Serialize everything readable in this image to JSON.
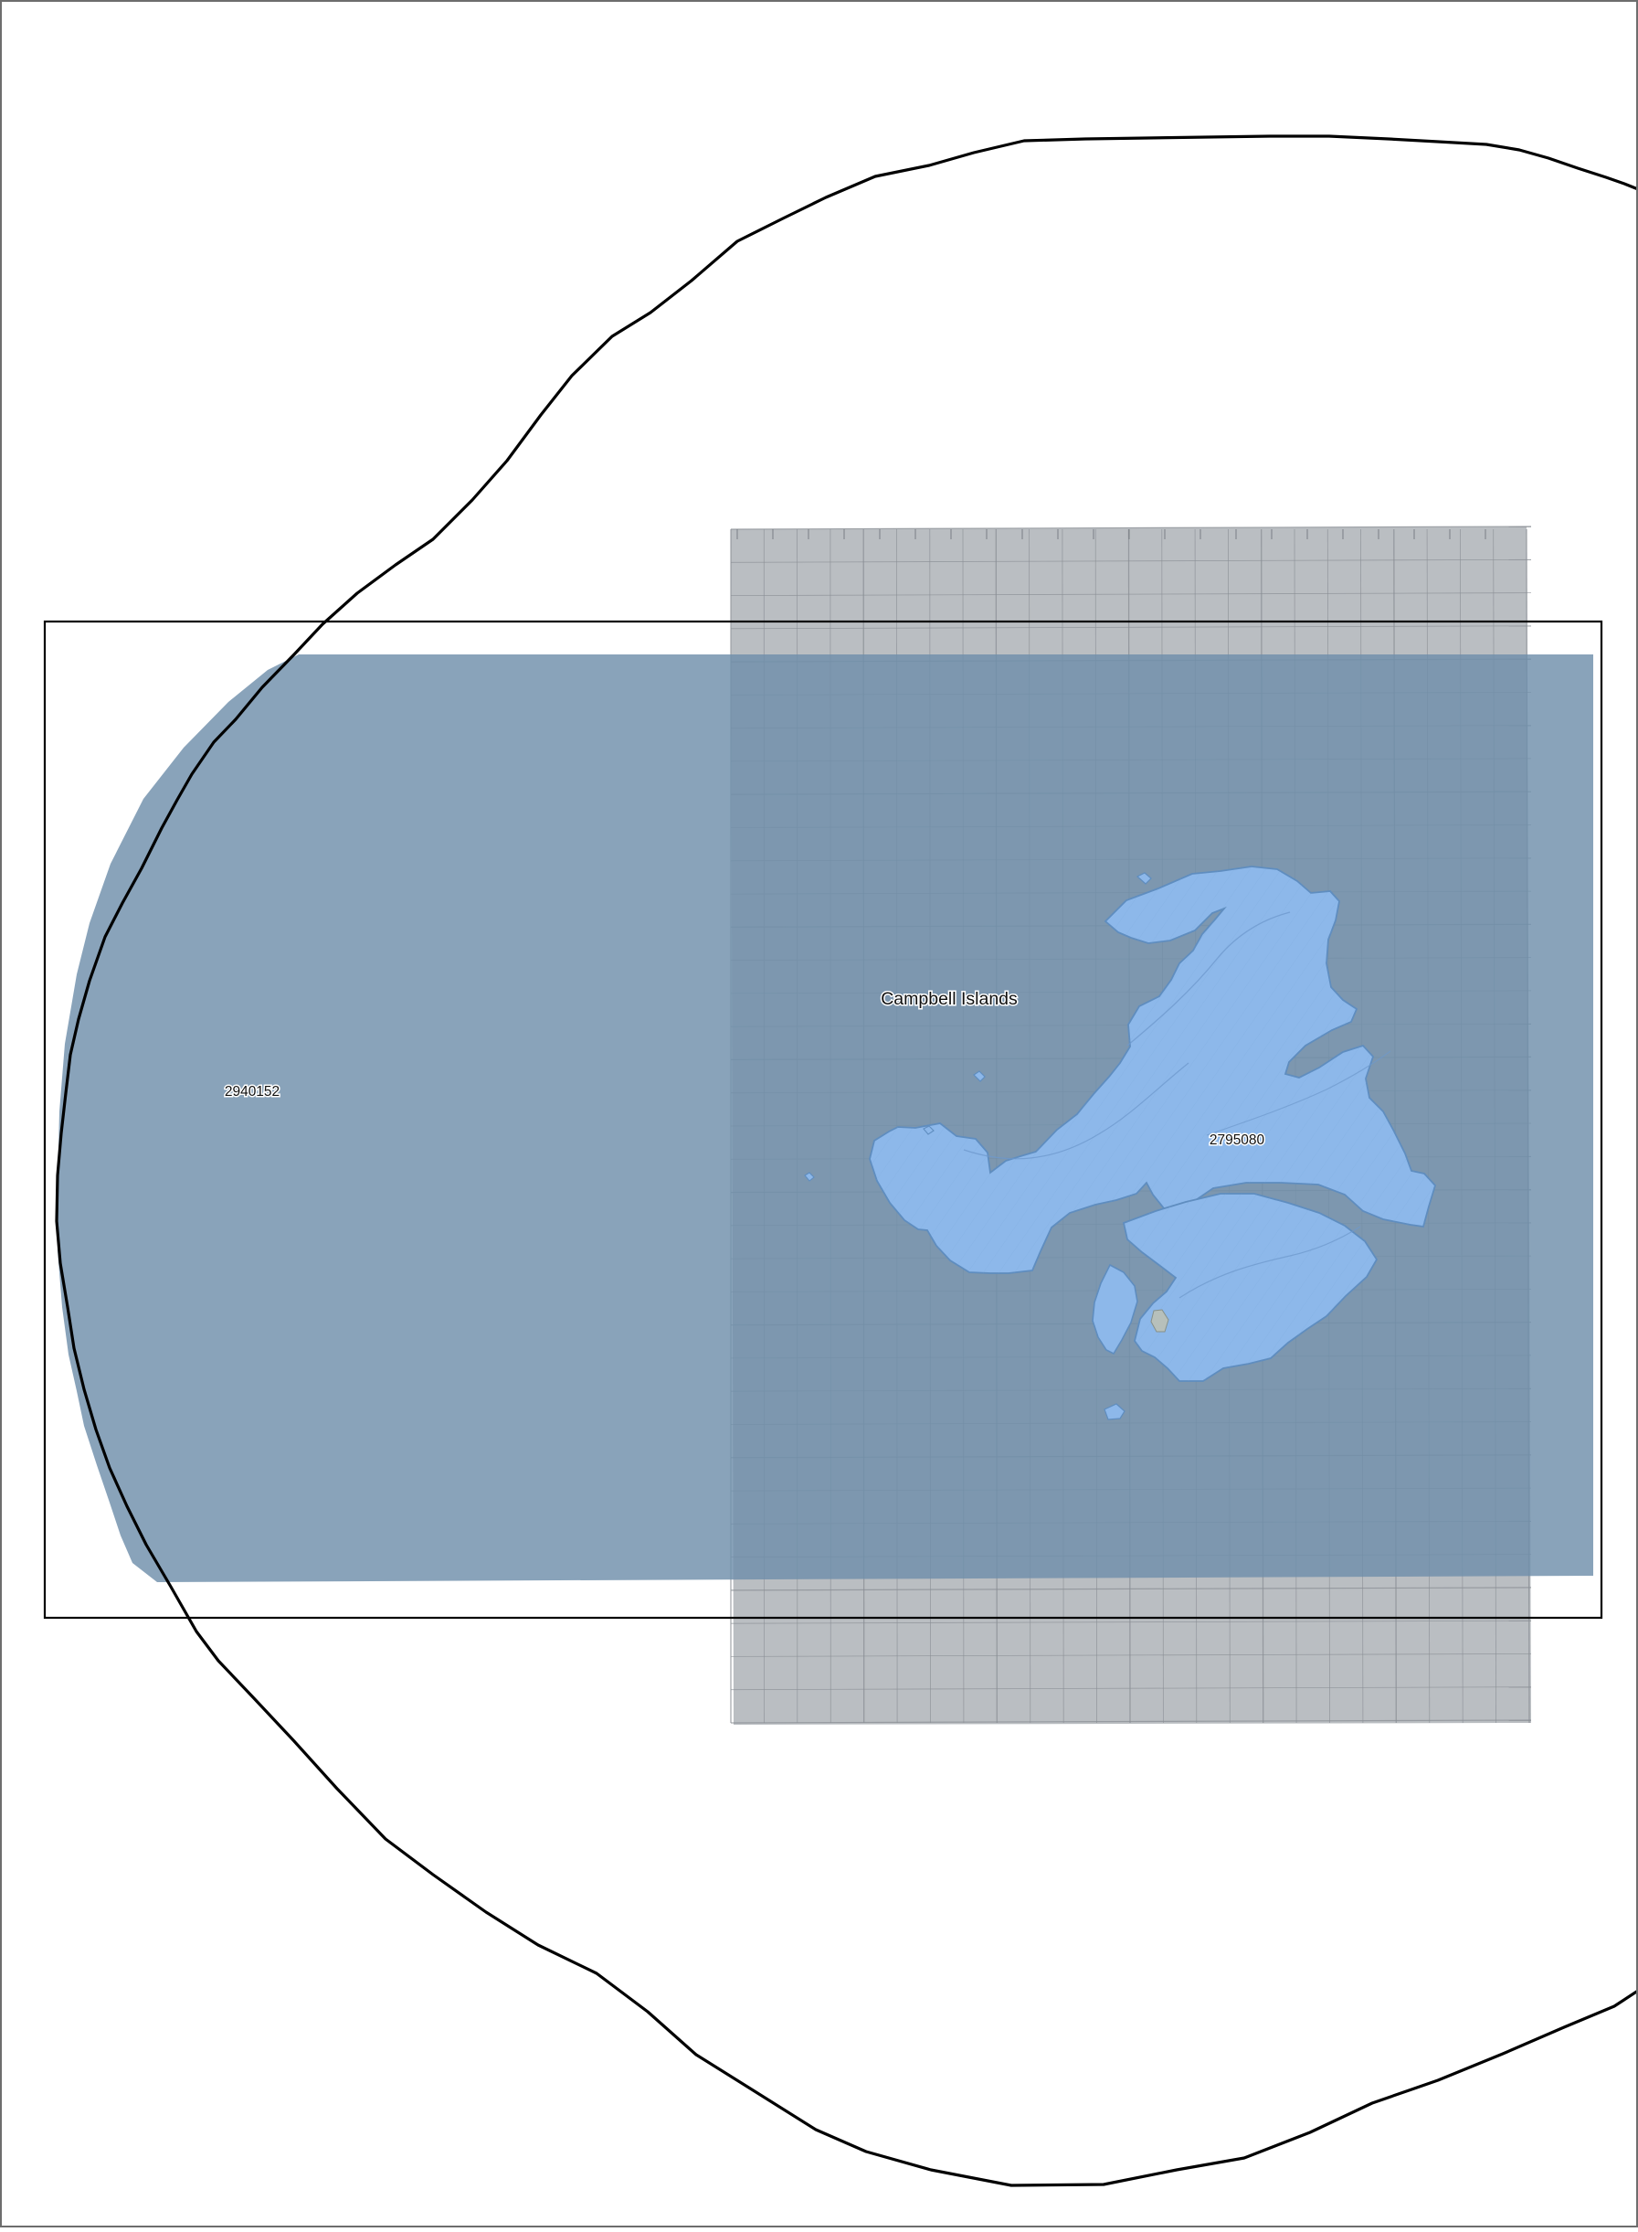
{
  "map": {
    "labels": {
      "region_name": "Campbell Islands",
      "feature_id_left": "2940152",
      "feature_id_center": "2795080"
    },
    "colors": {
      "background": "#ffffff",
      "page_border": "#6d6d6d",
      "boundary_line": "#000000",
      "coverage_fill": "#6f8fab",
      "coverage_fill_opacity": 0.82,
      "raster_sheet_fill": "#b9bdc1",
      "raster_sheet_grid": "#8a8f95",
      "island_fill": "#8db8ea",
      "island_stroke": "#5f8dbf",
      "island_hatch": "#7aa5d8"
    },
    "layers": [
      "page-border",
      "circular-boundary",
      "raster-sheet",
      "coverage-rectangle",
      "island",
      "extent-rectangle"
    ]
  }
}
